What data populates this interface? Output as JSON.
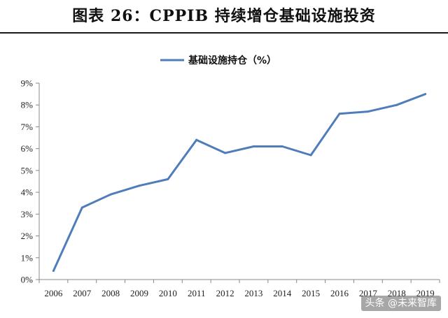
{
  "figure": {
    "title": "图表 26：CPPIB 持续增仓基础设施投资"
  },
  "watermark": "头条 @未来智库",
  "colors": {
    "line": "#4F7DBA",
    "axis": "#888888",
    "text": "#222222"
  },
  "chart_data": {
    "type": "line",
    "title": "",
    "xlabel": "",
    "ylabel": "",
    "legend_position": "top-center",
    "grid": false,
    "x": [
      "2006",
      "2007",
      "2008",
      "2009",
      "2010",
      "2011",
      "2012",
      "2013",
      "2014",
      "2015",
      "2016",
      "2017",
      "2018",
      "2019"
    ],
    "series": [
      {
        "name": "基础设施持仓（%）",
        "values": [
          0.4,
          3.3,
          3.9,
          4.3,
          4.6,
          6.4,
          5.8,
          6.1,
          6.1,
          5.7,
          7.6,
          7.7,
          8.0,
          8.5
        ]
      }
    ],
    "ylim": [
      0,
      9
    ],
    "yticks": [
      "0%",
      "1%",
      "2%",
      "3%",
      "4%",
      "5%",
      "6%",
      "7%",
      "8%",
      "9%"
    ]
  }
}
